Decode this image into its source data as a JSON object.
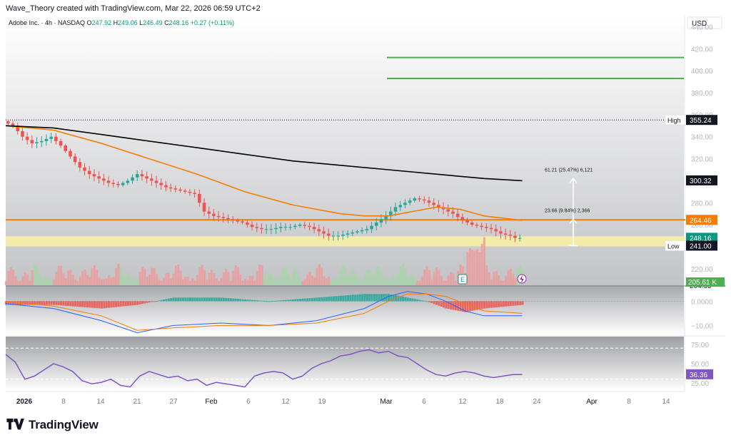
{
  "credit": "Wave_Theory created with TradingView.com, Mar 22, 2026 06:59 UTC+2",
  "symbol": {
    "name": "Adobe Inc.",
    "interval": "4h",
    "exchange": "NASDAQ",
    "o_label": "O",
    "o": "247.92",
    "h_label": "H",
    "h": "249.06",
    "l_label": "L",
    "l": "246.49",
    "c_label": "C",
    "c": "248.16",
    "change": "+0.27 (+0.11%)"
  },
  "currency": "USD",
  "brand": "TradingView",
  "colors": {
    "up": "#26a69a",
    "down": "#ef5350",
    "ema_fast": "#f57c00",
    "ema_slow": "#000000",
    "green_level": "#4caf50",
    "resistance": "#f57c00",
    "support": "#fff59d",
    "rsi": "#7e57c2",
    "macd": "#2962ff"
  },
  "chart_data": [
    {
      "type": "candlestick",
      "title": "Adobe Inc. · 4h · NASDAQ",
      "ylim": [
        205,
        450
      ],
      "y_ticks": [
        "440.00",
        "420.00",
        "400.00",
        "380.00",
        "360.00",
        "340.00",
        "320.00",
        "300.00",
        "280.00",
        "260.00",
        "240.00",
        "220.00"
      ],
      "x_ticks": [
        "2026",
        "8",
        "14",
        "21",
        "27",
        "Feb",
        "6",
        "12",
        "19",
        "Mar",
        "6",
        "12",
        "18",
        "24",
        "Apr",
        "8",
        "14"
      ],
      "close_path": [
        [
          0,
          354
        ],
        [
          4,
          350
        ],
        [
          8,
          340
        ],
        [
          12,
          334
        ],
        [
          16,
          336
        ],
        [
          20,
          340
        ],
        [
          24,
          332
        ],
        [
          28,
          322
        ],
        [
          32,
          312
        ],
        [
          36,
          306
        ],
        [
          40,
          302
        ],
        [
          44,
          298
        ],
        [
          48,
          296
        ],
        [
          52,
          300
        ],
        [
          56,
          306
        ],
        [
          60,
          302
        ],
        [
          64,
          298
        ],
        [
          68,
          294
        ],
        [
          72,
          292
        ],
        [
          76,
          290
        ],
        [
          80,
          288
        ],
        [
          84,
          272
        ],
        [
          88,
          268
        ],
        [
          92,
          266
        ],
        [
          96,
          264
        ],
        [
          100,
          262
        ],
        [
          104,
          258
        ],
        [
          108,
          256
        ],
        [
          112,
          256
        ],
        [
          116,
          258
        ],
        [
          120,
          258
        ],
        [
          124,
          260
        ],
        [
          128,
          258
        ],
        [
          132,
          254
        ],
        [
          136,
          250
        ],
        [
          140,
          250
        ],
        [
          144,
          252
        ],
        [
          148,
          254
        ],
        [
          152,
          256
        ],
        [
          156,
          262
        ],
        [
          160,
          268
        ],
        [
          164,
          276
        ],
        [
          168,
          280
        ],
        [
          172,
          284
        ],
        [
          176,
          282
        ],
        [
          180,
          278
        ],
        [
          184,
          274
        ],
        [
          188,
          270
        ],
        [
          192,
          264
        ],
        [
          196,
          260
        ],
        [
          200,
          258
        ],
        [
          204,
          256
        ],
        [
          208,
          252
        ],
        [
          212,
          250
        ],
        [
          214,
          248
        ],
        [
          216,
          248
        ]
      ],
      "ema_fast_path": [
        [
          0,
          350
        ],
        [
          20,
          346
        ],
        [
          40,
          334
        ],
        [
          60,
          320
        ],
        [
          80,
          306
        ],
        [
          100,
          290
        ],
        [
          120,
          278
        ],
        [
          140,
          270
        ],
        [
          150,
          268
        ],
        [
          160,
          268
        ],
        [
          170,
          272
        ],
        [
          180,
          276
        ],
        [
          190,
          274
        ],
        [
          200,
          268
        ],
        [
          216,
          264
        ]
      ],
      "ema_slow_path": [
        [
          0,
          350
        ],
        [
          20,
          348
        ],
        [
          40,
          342
        ],
        [
          60,
          336
        ],
        [
          80,
          330
        ],
        [
          100,
          324
        ],
        [
          120,
          318
        ],
        [
          140,
          314
        ],
        [
          160,
          310
        ],
        [
          180,
          306
        ],
        [
          200,
          302
        ],
        [
          216,
          300
        ]
      ],
      "levels": [
        {
          "label": "High",
          "value": 355.24,
          "text": "355.24",
          "style": "dotted"
        },
        {
          "label": "",
          "value": 300.32,
          "text": "300.32",
          "style": "tag"
        },
        {
          "label": "",
          "value": 264.46,
          "text": "264.46",
          "style": "resistance"
        },
        {
          "label": "",
          "value": 248.16,
          "text": "248.16",
          "style": "price"
        },
        {
          "label": "Low",
          "value": 241.0,
          "text": "241.00",
          "style": "support"
        },
        {
          "label": "",
          "value": 204.95,
          "text": "204.95",
          "style": "plain"
        }
      ],
      "targets": [
        {
          "value": 412
        },
        {
          "value": 393
        }
      ],
      "measurements": [
        {
          "text": "61.21 (25.47%) 6,121",
          "from": 241,
          "to": 302
        },
        {
          "text": "23.66 (9.84%) 2,366",
          "from": 241,
          "to": 265
        }
      ],
      "volume_tag": "205.61 K",
      "earnings_marker": "E"
    },
    {
      "type": "macd",
      "ylim": [
        -14,
        6
      ],
      "y_ticks": [
        "0.0000",
        "−10.00"
      ],
      "macd_path": [
        [
          0,
          -1
        ],
        [
          20,
          -3
        ],
        [
          40,
          -8
        ],
        [
          55,
          -13
        ],
        [
          70,
          -10
        ],
        [
          90,
          -9
        ],
        [
          110,
          -10
        ],
        [
          130,
          -8
        ],
        [
          150,
          -3
        ],
        [
          160,
          2
        ],
        [
          168,
          4
        ],
        [
          176,
          3
        ],
        [
          184,
          0
        ],
        [
          192,
          -4
        ],
        [
          200,
          -6
        ],
        [
          216,
          -6
        ]
      ],
      "signal_path": [
        [
          0,
          0
        ],
        [
          20,
          -2
        ],
        [
          40,
          -6
        ],
        [
          55,
          -12
        ],
        [
          70,
          -11
        ],
        [
          90,
          -10
        ],
        [
          110,
          -10
        ],
        [
          130,
          -9
        ],
        [
          150,
          -5
        ],
        [
          160,
          0
        ],
        [
          168,
          3
        ],
        [
          176,
          3
        ],
        [
          184,
          2
        ],
        [
          192,
          -1
        ],
        [
          200,
          -4
        ],
        [
          216,
          -5
        ]
      ]
    },
    {
      "type": "rsi",
      "ylim": [
        15,
        85
      ],
      "y_ticks": [
        "75.00",
        "50.00",
        "25.00"
      ],
      "value_tag": "36.36",
      "rsi_path": [
        [
          0,
          62
        ],
        [
          4,
          52
        ],
        [
          8,
          30
        ],
        [
          12,
          34
        ],
        [
          16,
          42
        ],
        [
          20,
          50
        ],
        [
          24,
          46
        ],
        [
          28,
          40
        ],
        [
          32,
          28
        ],
        [
          36,
          24
        ],
        [
          40,
          26
        ],
        [
          44,
          30
        ],
        [
          48,
          22
        ],
        [
          52,
          20
        ],
        [
          56,
          34
        ],
        [
          60,
          40
        ],
        [
          64,
          36
        ],
        [
          68,
          32
        ],
        [
          72,
          34
        ],
        [
          76,
          28
        ],
        [
          80,
          30
        ],
        [
          84,
          22
        ],
        [
          88,
          26
        ],
        [
          92,
          24
        ],
        [
          96,
          22
        ],
        [
          100,
          20
        ],
        [
          104,
          34
        ],
        [
          108,
          38
        ],
        [
          112,
          40
        ],
        [
          116,
          38
        ],
        [
          120,
          30
        ],
        [
          124,
          34
        ],
        [
          128,
          44
        ],
        [
          132,
          50
        ],
        [
          136,
          54
        ],
        [
          140,
          60
        ],
        [
          144,
          62
        ],
        [
          148,
          66
        ],
        [
          152,
          68
        ],
        [
          156,
          64
        ],
        [
          160,
          66
        ],
        [
          164,
          60
        ],
        [
          168,
          58
        ],
        [
          172,
          50
        ],
        [
          176,
          42
        ],
        [
          180,
          36
        ],
        [
          184,
          34
        ],
        [
          188,
          38
        ],
        [
          192,
          40
        ],
        [
          196,
          38
        ],
        [
          200,
          34
        ],
        [
          204,
          32
        ],
        [
          208,
          34
        ],
        [
          212,
          36
        ],
        [
          216,
          36
        ]
      ]
    }
  ]
}
